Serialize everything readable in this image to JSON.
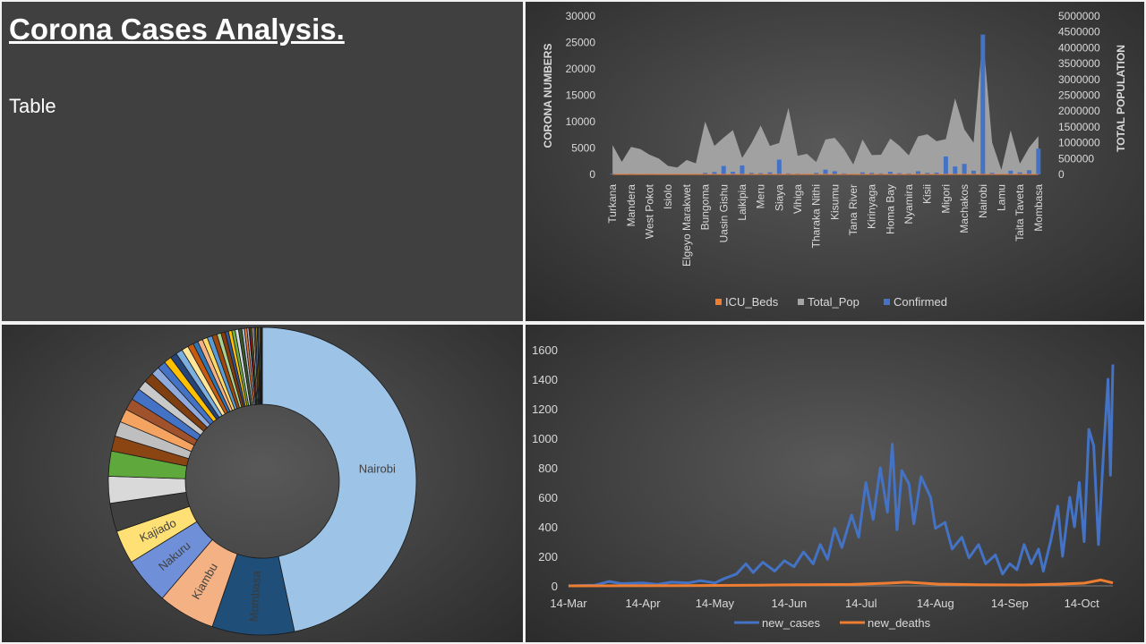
{
  "header": {
    "title": "Corona Cases Analysis.",
    "subtitle": "Table"
  },
  "colors": {
    "confirmed": "#4472c4",
    "total_pop": "#a5a5a5",
    "icu_beds": "#ed7d31",
    "new_cases": "#4472c4",
    "new_deaths": "#ed7d31"
  },
  "chart_data": [
    {
      "type": "area",
      "title": "",
      "ylabel": "CORONA NUMBERS",
      "y2label": "TOTAL POPULATION",
      "ylim": [
        0,
        30000
      ],
      "y2lim": [
        0,
        5000000
      ],
      "yticks": [
        "0",
        "5000",
        "10000",
        "15000",
        "20000",
        "25000",
        "30000"
      ],
      "y2ticks": [
        "0",
        "500000",
        "1000000",
        "1500000",
        "2000000",
        "2500000",
        "3000000",
        "3500000",
        "4000000",
        "4500000",
        "5000000"
      ],
      "categories": [
        "Turkana",
        "",
        "Mandera",
        "",
        "West Pokot",
        "",
        "Isiolo",
        "",
        "Elgeyo Marakwet",
        "",
        "Bungoma",
        "",
        "Uasin Gishu",
        "",
        "Laikipia",
        "",
        "Meru",
        "",
        "Siaya",
        "",
        "Vihiga",
        "",
        "Tharaka Nithi",
        "",
        "Kisumu",
        "",
        "Tana River",
        "",
        "Kirinyaga",
        "",
        "Homa Bay",
        "",
        "Nyamira",
        "",
        "Kisii",
        "",
        "Migori",
        "",
        "Machakos",
        "",
        "Nairobi",
        "",
        "Lamu",
        "",
        "Taita Taveta",
        "",
        "Mombasa"
      ],
      "legend": [
        "ICU_Beds",
        "Total_Pop",
        "Confirmed"
      ],
      "legend_position": "bottom",
      "series": [
        {
          "name": "Total_Pop",
          "axis": "secondary",
          "values": [
            926976,
            400000,
            867457,
            800000,
            621241,
            500000,
            268002,
            220000,
            454480,
            350000,
            1670570,
            900000,
            1163186,
            1400000,
            518560,
            980000,
            1545714,
            900000,
            993183,
            2100000,
            590013,
            650000,
            393177,
            1100000,
            1155574,
            800000,
            315943,
            1100000,
            610411,
            620000,
            1131950,
            900000,
            605576,
            1200000,
            1266860,
            1050000,
            1116436,
            2400000,
            1421932,
            1000000,
            4397073,
            1010000,
            143920,
            1390000,
            340671,
            850000,
            1208333
          ]
        },
        {
          "name": "Confirmed",
          "axis": "primary",
          "values": [
            150,
            80,
            120,
            90,
            60,
            50,
            40,
            30,
            70,
            100,
            300,
            450,
            1600,
            500,
            1700,
            300,
            250,
            400,
            2800,
            200,
            150,
            100,
            300,
            900,
            600,
            200,
            100,
            400,
            300,
            200,
            500,
            250,
            200,
            600,
            300,
            350,
            3400,
            1500,
            2000,
            700,
            26500,
            300,
            100,
            700,
            400,
            800,
            4900
          ]
        },
        {
          "name": "ICU_Beds",
          "axis": "primary",
          "values": [
            0,
            0,
            0,
            0,
            0,
            0,
            0,
            0,
            0,
            0,
            0,
            0,
            0,
            0,
            0,
            0,
            0,
            0,
            0,
            0,
            0,
            0,
            0,
            0,
            0,
            0,
            0,
            0,
            0,
            0,
            0,
            0,
            0,
            0,
            0,
            0,
            0,
            0,
            0,
            0,
            0,
            0,
            0,
            0,
            0,
            0,
            0
          ]
        }
      ]
    },
    {
      "type": "pie",
      "title": "",
      "donut": true,
      "labels_shown": [
        "Nairobi",
        "Mombasa",
        "Kiambu",
        "Nakuru",
        "Kajiado"
      ],
      "slices": [
        {
          "label": "Nairobi",
          "value": 26500,
          "color": "#9dc3e6"
        },
        {
          "label": "Mombasa",
          "value": 4900,
          "color": "#1f4e79"
        },
        {
          "label": "Kiambu",
          "value": 3400,
          "color": "#f4b183"
        },
        {
          "label": "Nakuru",
          "value": 2800,
          "color": "#6f8fd8"
        },
        {
          "label": "Kajiado",
          "value": 2000,
          "color": "#ffe074"
        },
        {
          "label": "",
          "value": 1700,
          "color": "#404040"
        },
        {
          "label": "",
          "value": 1600,
          "color": "#d9d9d9"
        },
        {
          "label": "",
          "value": 1500,
          "color": "#5fa83c"
        },
        {
          "label": "",
          "value": 900,
          "color": "#8b4513"
        },
        {
          "label": "",
          "value": 900,
          "color": "#bfbfbf"
        },
        {
          "label": "",
          "value": 800,
          "color": "#f4a460"
        },
        {
          "label": "",
          "value": 700,
          "color": "#a0522d"
        },
        {
          "label": "",
          "value": 700,
          "color": "#4472c4"
        },
        {
          "label": "",
          "value": 600,
          "color": "#c9c9c9"
        },
        {
          "label": "",
          "value": 600,
          "color": "#7f3f10"
        },
        {
          "label": "",
          "value": 500,
          "color": "#8faadc"
        },
        {
          "label": "",
          "value": 500,
          "color": "#4472c4"
        },
        {
          "label": "",
          "value": 450,
          "color": "#ffc000"
        },
        {
          "label": "",
          "value": 400,
          "color": "#264478"
        },
        {
          "label": "",
          "value": 400,
          "color": "#7cafdd"
        },
        {
          "label": "",
          "value": 400,
          "color": "#ffe699"
        },
        {
          "label": "",
          "value": 350,
          "color": "#c55a11"
        },
        {
          "label": "",
          "value": 300,
          "color": "#2e75b6"
        },
        {
          "label": "",
          "value": 300,
          "color": "#f4b183"
        },
        {
          "label": "",
          "value": 300,
          "color": "#ffd966"
        },
        {
          "label": "",
          "value": 300,
          "color": "#5b9bd5"
        },
        {
          "label": "",
          "value": 300,
          "color": "#9e480e"
        },
        {
          "label": "",
          "value": 250,
          "color": "#a9d18e"
        },
        {
          "label": "",
          "value": 250,
          "color": "#843c0c"
        },
        {
          "label": "",
          "value": 200,
          "color": "#305496"
        },
        {
          "label": "",
          "value": 200,
          "color": "#ffc000"
        },
        {
          "label": "",
          "value": 200,
          "color": "#70ad47"
        },
        {
          "label": "",
          "value": 200,
          "color": "#d6dce5"
        },
        {
          "label": "",
          "value": 200,
          "color": "#385723"
        },
        {
          "label": "",
          "value": 150,
          "color": "#b4c7e7"
        },
        {
          "label": "",
          "value": 150,
          "color": "#ed7d31"
        },
        {
          "label": "",
          "value": 120,
          "color": "#9dc3e6"
        },
        {
          "label": "",
          "value": 100,
          "color": "#c00000"
        },
        {
          "label": "",
          "value": 100,
          "color": "#548235"
        },
        {
          "label": "",
          "value": 100,
          "color": "#f8cbad"
        },
        {
          "label": "",
          "value": 100,
          "color": "#2f5597"
        },
        {
          "label": "",
          "value": 90,
          "color": "#bf9000"
        },
        {
          "label": "",
          "value": 80,
          "color": "#1f3864"
        },
        {
          "label": "",
          "value": 70,
          "color": "#c5e0b4"
        },
        {
          "label": "",
          "value": 60,
          "color": "#7f6000"
        },
        {
          "label": "",
          "value": 50,
          "color": "#a5a5a5"
        },
        {
          "label": "",
          "value": 40,
          "color": "#d9d9d9"
        }
      ]
    },
    {
      "type": "line",
      "title": "",
      "ylim": [
        0,
        1600
      ],
      "yticks": [
        "0",
        "200",
        "400",
        "600",
        "800",
        "1000",
        "1200",
        "1400",
        "1600"
      ],
      "xticks": [
        "14-Mar",
        "14-Apr",
        "14-May",
        "14-Jun",
        "14-Jul",
        "14-Aug",
        "14-Sep",
        "14-Oct"
      ],
      "x_start": "2020-03-14",
      "x_end": "2020-10-27",
      "legend": [
        "new_cases",
        "new_deaths"
      ],
      "legend_position": "bottom",
      "series": [
        {
          "name": "new_cases",
          "points": [
            [
              "2020-03-14",
              0
            ],
            [
              "2020-03-25",
              5
            ],
            [
              "2020-03-31",
              30
            ],
            [
              "2020-04-05",
              15
            ],
            [
              "2020-04-14",
              20
            ],
            [
              "2020-04-20",
              10
            ],
            [
              "2020-04-26",
              25
            ],
            [
              "2020-05-03",
              20
            ],
            [
              "2020-05-08",
              35
            ],
            [
              "2020-05-14",
              20
            ],
            [
              "2020-05-18",
              50
            ],
            [
              "2020-05-23",
              80
            ],
            [
              "2020-05-27",
              150
            ],
            [
              "2020-05-30",
              90
            ],
            [
              "2020-06-03",
              160
            ],
            [
              "2020-06-08",
              100
            ],
            [
              "2020-06-12",
              170
            ],
            [
              "2020-06-16",
              130
            ],
            [
              "2020-06-20",
              230
            ],
            [
              "2020-06-24",
              150
            ],
            [
              "2020-06-27",
              280
            ],
            [
              "2020-06-30",
              180
            ],
            [
              "2020-07-03",
              390
            ],
            [
              "2020-07-06",
              260
            ],
            [
              "2020-07-10",
              480
            ],
            [
              "2020-07-13",
              330
            ],
            [
              "2020-07-16",
              700
            ],
            [
              "2020-07-19",
              450
            ],
            [
              "2020-07-22",
              800
            ],
            [
              "2020-07-25",
              500
            ],
            [
              "2020-07-27",
              960
            ],
            [
              "2020-07-29",
              380
            ],
            [
              "2020-07-31",
              780
            ],
            [
              "2020-08-03",
              690
            ],
            [
              "2020-08-05",
              420
            ],
            [
              "2020-08-08",
              740
            ],
            [
              "2020-08-12",
              600
            ],
            [
              "2020-08-14",
              390
            ],
            [
              "2020-08-18",
              430
            ],
            [
              "2020-08-21",
              250
            ],
            [
              "2020-08-25",
              330
            ],
            [
              "2020-08-28",
              190
            ],
            [
              "2020-09-01",
              280
            ],
            [
              "2020-09-04",
              150
            ],
            [
              "2020-09-08",
              210
            ],
            [
              "2020-09-11",
              80
            ],
            [
              "2020-09-14",
              150
            ],
            [
              "2020-09-17",
              110
            ],
            [
              "2020-09-20",
              280
            ],
            [
              "2020-09-23",
              150
            ],
            [
              "2020-09-26",
              250
            ],
            [
              "2020-09-28",
              100
            ],
            [
              "2020-10-01",
              300
            ],
            [
              "2020-10-04",
              540
            ],
            [
              "2020-10-06",
              200
            ],
            [
              "2020-10-09",
              600
            ],
            [
              "2020-10-11",
              400
            ],
            [
              "2020-10-13",
              700
            ],
            [
              "2020-10-15",
              300
            ],
            [
              "2020-10-17",
              1060
            ],
            [
              "2020-10-19",
              950
            ],
            [
              "2020-10-21",
              280
            ],
            [
              "2020-10-23",
              880
            ],
            [
              "2020-10-25",
              1400
            ],
            [
              "2020-10-26",
              750
            ],
            [
              "2020-10-27",
              1500
            ]
          ]
        },
        {
          "name": "new_deaths",
          "points": [
            [
              "2020-03-14",
              0
            ],
            [
              "2020-05-01",
              2
            ],
            [
              "2020-06-01",
              5
            ],
            [
              "2020-06-20",
              8
            ],
            [
              "2020-07-10",
              10
            ],
            [
              "2020-07-25",
              18
            ],
            [
              "2020-08-02",
              25
            ],
            [
              "2020-08-15",
              12
            ],
            [
              "2020-09-01",
              8
            ],
            [
              "2020-09-20",
              6
            ],
            [
              "2020-10-05",
              12
            ],
            [
              "2020-10-15",
              18
            ],
            [
              "2020-10-22",
              40
            ],
            [
              "2020-10-27",
              20
            ]
          ]
        }
      ]
    }
  ]
}
